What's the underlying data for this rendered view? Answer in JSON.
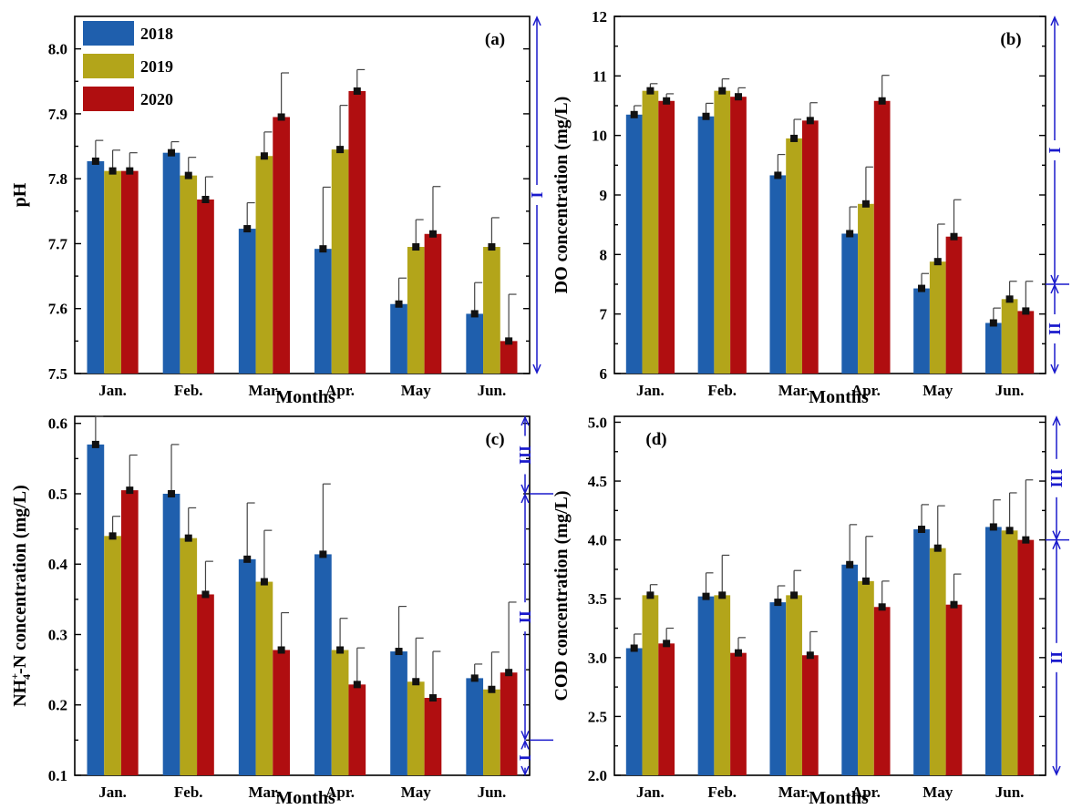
{
  "colors": {
    "2018": "#1f5fad",
    "2019": "#b3a51a",
    "2020": "#b00e10",
    "zone": "#1a1acc"
  },
  "legend": [
    "2018",
    "2019",
    "2020"
  ],
  "chart_data": [
    {
      "type": "bar",
      "panel": "(a)",
      "xlabel": "Months",
      "ylabel": "pH",
      "categories": [
        "Jan.",
        "Feb.",
        "Mar.",
        "Apr.",
        "May",
        "Jun."
      ],
      "ylim": [
        7.5,
        8.05
      ],
      "yticks": [
        7.5,
        7.6,
        7.7,
        7.8,
        7.9,
        8.0
      ],
      "ytick_labels": [
        "7.5",
        "7.6",
        "7.7",
        "7.8",
        "7.9",
        "8.0"
      ],
      "series": [
        {
          "name": "2018",
          "values": [
            7.827,
            7.84,
            7.723,
            7.692,
            7.607,
            7.592
          ],
          "errors": [
            0.032,
            0.017,
            0.04,
            0.095,
            0.04,
            0.048
          ]
        },
        {
          "name": "2019",
          "values": [
            7.812,
            7.805,
            7.835,
            7.845,
            7.695,
            7.695
          ],
          "errors": [
            0.032,
            0.028,
            0.037,
            0.068,
            0.042,
            0.045
          ]
        },
        {
          "name": "2020",
          "values": [
            7.812,
            7.768,
            7.895,
            7.935,
            7.715,
            7.55
          ],
          "errors": [
            0.028,
            0.035,
            0.068,
            0.033,
            0.073,
            0.072
          ]
        }
      ],
      "zones": [
        {
          "label": "I",
          "from": 7.5,
          "to": 8.05
        }
      ]
    },
    {
      "type": "bar",
      "panel": "(b)",
      "xlabel": "Months",
      "ylabel": "DO concentration (mg/L)",
      "categories": [
        "Jan.",
        "Feb.",
        "Mar.",
        "Apr.",
        "May",
        "Jun."
      ],
      "ylim": [
        6,
        12
      ],
      "yticks": [
        6,
        7,
        8,
        9,
        10,
        11,
        12
      ],
      "ytick_labels": [
        "6",
        "7",
        "8",
        "9",
        "10",
        "11",
        "12"
      ],
      "series": [
        {
          "name": "2018",
          "values": [
            10.35,
            10.32,
            9.33,
            8.35,
            7.43,
            6.85
          ],
          "errors": [
            0.15,
            0.22,
            0.35,
            0.45,
            0.25,
            0.25
          ]
        },
        {
          "name": "2019",
          "values": [
            10.75,
            10.75,
            9.95,
            8.85,
            7.88,
            7.25
          ],
          "errors": [
            0.12,
            0.2,
            0.32,
            0.62,
            0.63,
            0.3
          ]
        },
        {
          "name": "2020",
          "values": [
            10.58,
            10.65,
            10.25,
            10.58,
            8.3,
            7.05
          ],
          "errors": [
            0.12,
            0.15,
            0.3,
            0.43,
            0.62,
            0.5
          ]
        }
      ],
      "zones": [
        {
          "label": "I",
          "from": 7.5,
          "to": 12
        },
        {
          "label": "II",
          "from": 6,
          "to": 7.5
        }
      ]
    },
    {
      "type": "bar",
      "panel": "(c)",
      "xlabel": "Months",
      "ylabel_main": "NH",
      "ylabel_sup": "+",
      "ylabel_sub": "4",
      "ylabel_rest": "-N concentration (mg/L)",
      "categories": [
        "Jan.",
        "Feb.",
        "Mar.",
        "Apr.",
        "May",
        "Jun."
      ],
      "ylim": [
        0.1,
        0.61
      ],
      "yticks": [
        0.1,
        0.2,
        0.3,
        0.4,
        0.5,
        0.6
      ],
      "ytick_labels": [
        "0.1",
        "0.2",
        "0.3",
        "0.4",
        "0.5",
        "0.6"
      ],
      "series": [
        {
          "name": "2018",
          "values": [
            0.57,
            0.5,
            0.407,
            0.414,
            0.276,
            0.238
          ],
          "errors": [
            0.04,
            0.07,
            0.08,
            0.1,
            0.064,
            0.02
          ]
        },
        {
          "name": "2019",
          "values": [
            0.44,
            0.437,
            0.375,
            0.278,
            0.233,
            0.222
          ],
          "errors": [
            0.028,
            0.043,
            0.073,
            0.045,
            0.062,
            0.053
          ]
        },
        {
          "name": "2020",
          "values": [
            0.505,
            0.357,
            0.278,
            0.229,
            0.21,
            0.246
          ],
          "errors": [
            0.05,
            0.047,
            0.053,
            0.052,
            0.066,
            0.1
          ]
        }
      ],
      "zones": [
        {
          "label": "III",
          "from": 0.5,
          "to": 0.61
        },
        {
          "label": "II",
          "from": 0.15,
          "to": 0.5
        },
        {
          "label": "I",
          "from": 0.1,
          "to": 0.15
        }
      ]
    },
    {
      "type": "bar",
      "panel": "(d)",
      "xlabel": "Months",
      "ylabel": "COD concentration (mg/L)",
      "categories": [
        "Jan.",
        "Feb.",
        "Mar.",
        "Apr.",
        "May",
        "Jun."
      ],
      "ylim": [
        2.0,
        5.05
      ],
      "yticks": [
        2.0,
        2.5,
        3.0,
        3.5,
        4.0,
        4.5,
        5.0
      ],
      "ytick_labels": [
        "2.0",
        "2.5",
        "3.0",
        "3.5",
        "4.0",
        "4.5",
        "5.0"
      ],
      "series": [
        {
          "name": "2018",
          "values": [
            3.08,
            3.52,
            3.47,
            3.79,
            4.09,
            4.11
          ],
          "errors": [
            0.12,
            0.2,
            0.14,
            0.34,
            0.21,
            0.23
          ]
        },
        {
          "name": "2019",
          "values": [
            3.53,
            3.53,
            3.53,
            3.65,
            3.93,
            4.08
          ],
          "errors": [
            0.09,
            0.34,
            0.21,
            0.38,
            0.36,
            0.32
          ]
        },
        {
          "name": "2020",
          "values": [
            3.12,
            3.04,
            3.02,
            3.43,
            3.45,
            4.0
          ],
          "errors": [
            0.13,
            0.13,
            0.2,
            0.22,
            0.26,
            0.51
          ]
        }
      ],
      "zones": [
        {
          "label": "III",
          "from": 4.0,
          "to": 5.05
        },
        {
          "label": "II",
          "from": 2.0,
          "to": 4.0
        }
      ]
    }
  ]
}
